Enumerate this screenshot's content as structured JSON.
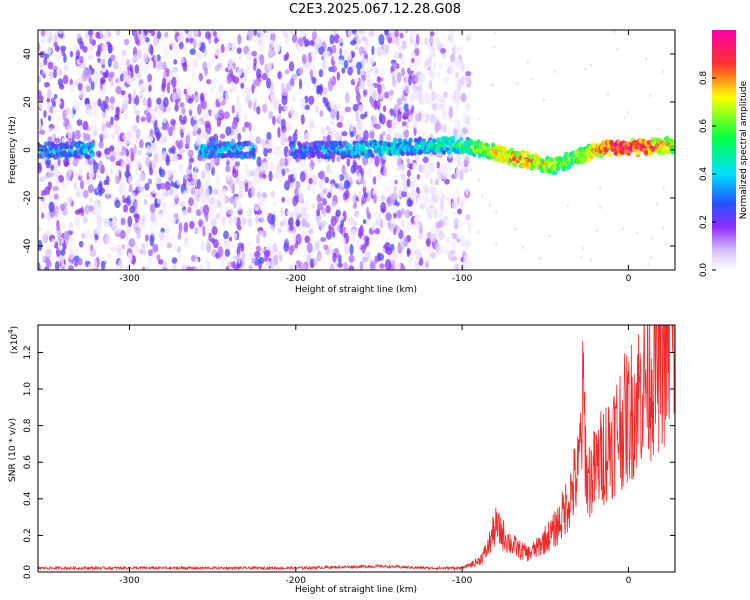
{
  "title": "C2E3.2025.067.12.28.G08",
  "colors": {
    "snr_line": "#ee2a2a",
    "spectrogram_scale": [
      "#ffffff",
      "#c9a6ff",
      "#8c2bff",
      "#2255ff",
      "#00e0ff",
      "#00ff44",
      "#ffff00",
      "#ff3030"
    ]
  },
  "chart_data": [
    {
      "type": "heatmap",
      "title": "",
      "xlabel": "Height of straight line (km)",
      "ylabel": "Frequency (Hz)",
      "xlim": [
        -355,
        28
      ],
      "ylim": [
        -50,
        50
      ],
      "xticks": [
        "-300",
        "-200",
        "-100",
        "0"
      ],
      "yticks": [
        "-40",
        "-20",
        "0",
        "20",
        "40"
      ],
      "colorbar": {
        "label": "Normalized spectral amplitude",
        "range": [
          0.0,
          1.0
        ],
        "ticks": [
          "0.0",
          "0.2",
          "0.4",
          "0.6",
          "0.8"
        ]
      },
      "ridge": {
        "description_points": [
          {
            "x": -350,
            "y": 0,
            "amplitude": 0.35
          },
          {
            "x": -330,
            "y": 0,
            "amplitude": 0.4
          },
          {
            "x": -255,
            "y": 0,
            "amplitude": 0.4
          },
          {
            "x": -230,
            "y": 0,
            "amplitude": 0.4
          },
          {
            "x": -200,
            "y": 0,
            "amplitude": 0.3
          },
          {
            "x": -170,
            "y": 0,
            "amplitude": 0.4
          },
          {
            "x": -140,
            "y": 1,
            "amplitude": 0.45
          },
          {
            "x": -120,
            "y": 2,
            "amplitude": 0.45
          },
          {
            "x": -100,
            "y": 2,
            "amplitude": 0.55
          },
          {
            "x": -85,
            "y": 0,
            "amplitude": 0.7
          },
          {
            "x": -70,
            "y": -3,
            "amplitude": 0.8
          },
          {
            "x": -55,
            "y": -5,
            "amplitude": 0.75
          },
          {
            "x": -45,
            "y": -7,
            "amplitude": 0.7
          },
          {
            "x": -35,
            "y": -4,
            "amplitude": 0.6
          },
          {
            "x": -20,
            "y": 0,
            "amplitude": 0.8
          },
          {
            "x": -5,
            "y": 1,
            "amplitude": 0.95
          },
          {
            "x": 10,
            "y": 1,
            "amplitude": 0.9
          },
          {
            "x": 25,
            "y": 2,
            "amplitude": 0.7
          }
        ]
      }
    },
    {
      "type": "line",
      "title": "",
      "xlabel": "Height of straight line (km)",
      "ylabel": "SNR (10 * v/v)",
      "yscale_label": "(x10",
      "yscale_exp": "4",
      "yscale_suffix": ")",
      "xlim": [
        -355,
        28
      ],
      "ylim": [
        0,
        1.35
      ],
      "xticks": [
        "-300",
        "-200",
        "-100",
        "0"
      ],
      "yticks": [
        "0.0",
        "0.2",
        "0.4",
        "0.6",
        "0.8",
        "1.0",
        "1.2"
      ],
      "series": [
        {
          "x": [
            -355,
            -300,
            -250,
            -200,
            -150,
            -120,
            -100,
            -90,
            -85,
            -80,
            -75,
            -70,
            -65,
            -60,
            -55,
            -50,
            -45,
            -40,
            -35,
            -30,
            -27,
            -25,
            -20,
            -15,
            -10,
            -5,
            0,
            5,
            10,
            15,
            20,
            25,
            28
          ],
          "y": [
            0.02,
            0.02,
            0.02,
            0.02,
            0.03,
            0.02,
            0.02,
            0.06,
            0.12,
            0.25,
            0.2,
            0.15,
            0.12,
            0.1,
            0.13,
            0.18,
            0.22,
            0.3,
            0.42,
            0.55,
            0.95,
            0.5,
            0.55,
            0.65,
            0.72,
            0.8,
            0.85,
            0.95,
            1.05,
            1.12,
            1.18,
            1.25,
            1.28
          ]
        }
      ]
    }
  ]
}
